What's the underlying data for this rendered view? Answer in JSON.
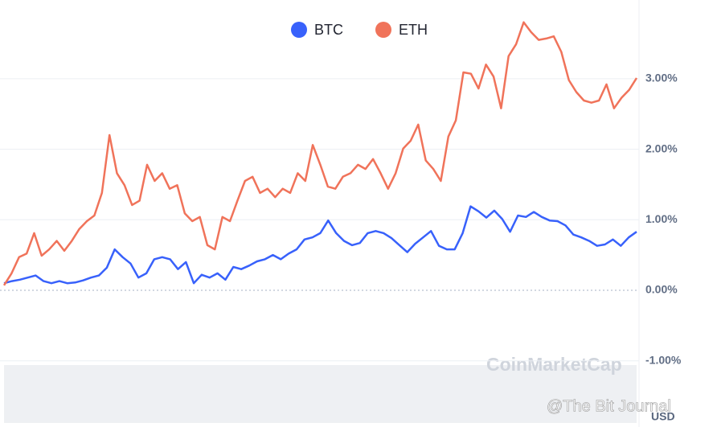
{
  "chart_data": {
    "type": "line",
    "legend": "top",
    "grid": true,
    "ylim": [
      -1,
      4.11
    ],
    "yticks": [
      {
        "value": -1,
        "label": "-1.00%"
      },
      {
        "value": 0,
        "label": "0.00%"
      },
      {
        "value": 1,
        "label": "1.00%"
      },
      {
        "value": 2,
        "label": "2.00%"
      },
      {
        "value": 3,
        "label": "3.00%"
      }
    ],
    "y_unit": "USD",
    "watermarks": [
      "CoinMarketCap",
      "@The Bit Journal"
    ],
    "series": [
      {
        "name": "BTC",
        "color": "#3861fb",
        "values": [
          0.1,
          0.13,
          0.15,
          0.18,
          0.21,
          0.13,
          0.1,
          0.13,
          0.1,
          0.11,
          0.14,
          0.18,
          0.21,
          0.32,
          0.58,
          0.47,
          0.38,
          0.18,
          0.24,
          0.44,
          0.47,
          0.44,
          0.3,
          0.4,
          0.1,
          0.22,
          0.18,
          0.24,
          0.15,
          0.33,
          0.3,
          0.35,
          0.41,
          0.44,
          0.5,
          0.44,
          0.52,
          0.58,
          0.72,
          0.75,
          0.81,
          0.99,
          0.81,
          0.7,
          0.64,
          0.67,
          0.81,
          0.84,
          0.81,
          0.74,
          0.64,
          0.54,
          0.66,
          0.75,
          0.84,
          0.63,
          0.58,
          0.58,
          0.81,
          1.19,
          1.12,
          1.03,
          1.13,
          1.01,
          0.83,
          1.06,
          1.04,
          1.11,
          1.04,
          0.99,
          0.98,
          0.92,
          0.79,
          0.75,
          0.7,
          0.63,
          0.65,
          0.72,
          0.63,
          0.75,
          0.83
        ]
      },
      {
        "name": "ETH",
        "color": "#f0735a",
        "values": [
          0.07,
          0.24,
          0.47,
          0.52,
          0.81,
          0.49,
          0.58,
          0.7,
          0.56,
          0.7,
          0.87,
          0.98,
          1.06,
          1.38,
          2.2,
          1.66,
          1.49,
          1.21,
          1.27,
          1.78,
          1.55,
          1.66,
          1.44,
          1.49,
          1.09,
          0.98,
          1.04,
          0.64,
          0.58,
          1.04,
          0.98,
          1.27,
          1.55,
          1.61,
          1.38,
          1.44,
          1.32,
          1.44,
          1.38,
          1.66,
          1.55,
          2.06,
          1.78,
          1.47,
          1.44,
          1.61,
          1.66,
          1.78,
          1.72,
          1.86,
          1.66,
          1.44,
          1.66,
          2.01,
          2.12,
          2.35,
          1.84,
          1.72,
          1.55,
          2.18,
          2.41,
          3.09,
          3.07,
          2.86,
          3.2,
          3.03,
          2.58,
          3.32,
          3.49,
          3.8,
          3.66,
          3.55,
          3.57,
          3.6,
          3.38,
          2.98,
          2.81,
          2.69,
          2.66,
          2.69,
          2.92,
          2.58,
          2.73,
          2.84,
          3.01
        ]
      }
    ]
  }
}
